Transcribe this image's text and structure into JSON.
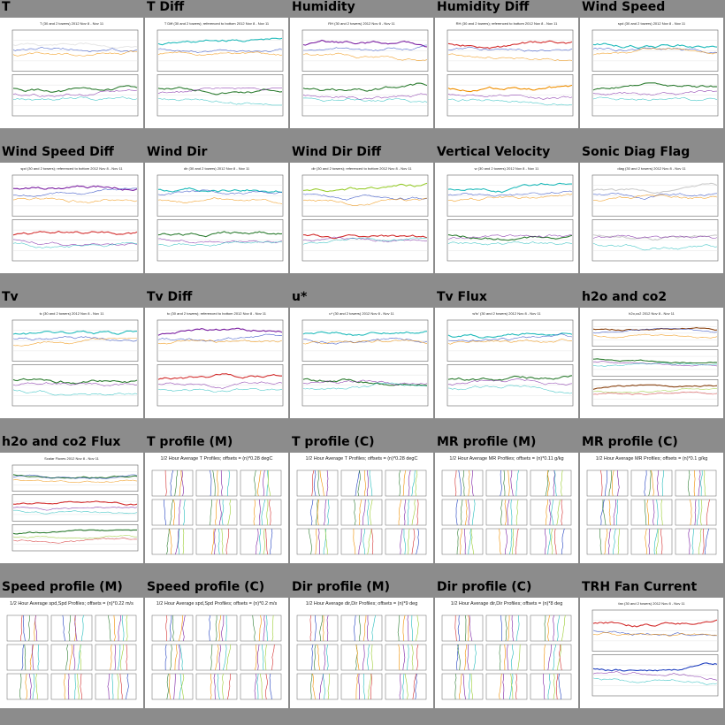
{
  "page": {
    "background": "#8c8c8c"
  },
  "thumbnails": [
    {
      "title": "T",
      "kind": "ts2",
      "caption": "T (30 and 2 towers) 2012 Nov 8 - Nov 11",
      "colors": [
        "#e8e8e8",
        "#2e7d32"
      ]
    },
    {
      "title": "T Diff",
      "kind": "ts2",
      "caption": "T Diff (30 and 2 towers); referenced to bottom 2012 Nov 8 - Nov 11",
      "colors": [
        "#22bbbb",
        "#2e7d32"
      ]
    },
    {
      "title": "Humidity",
      "kind": "ts2",
      "caption": "RH (30 and 2 towers) 2012 Nov 8 - Nov 11",
      "colors": [
        "#7b1fa2",
        "#2e7d32"
      ]
    },
    {
      "title": "Humidity Diff",
      "kind": "ts2",
      "caption": "RH (30 and 2 towers); referenced to bottom 2012 Nov 8 - Nov 11",
      "colors": [
        "#d32f2f",
        "#ef8f00"
      ]
    },
    {
      "title": "Wind Speed",
      "kind": "ts2",
      "caption": "spd (30 and 2 towers) 2012 Nov 8 - Nov 11",
      "colors": [
        "#22bbbb",
        "#2e7d32"
      ]
    },
    {
      "title": "Wind Speed Diff",
      "kind": "ts2",
      "caption": "spd (30 and 2 towers); referenced to bottom 2012 Nov 8 - Nov 11",
      "colors": [
        "#7b1fa2",
        "#d32f2f"
      ]
    },
    {
      "title": "Wind Dir",
      "kind": "ts2",
      "caption": "dir (30 and 2 towers) 2012 Nov 8 - Nov 11",
      "colors": [
        "#22bbbb",
        "#2e7d32"
      ]
    },
    {
      "title": "Wind Dir Diff",
      "kind": "ts2",
      "caption": "dir (30 and 2 towers); referenced to bottom 2012 Nov 8 - Nov 11",
      "colors": [
        "#9acd32",
        "#d32f2f"
      ]
    },
    {
      "title": "Vertical Velocity",
      "kind": "ts2",
      "caption": "w (30 and 2 towers) 2012 Nov 8 - Nov 11",
      "colors": [
        "#22bbbb",
        "#2e7d32"
      ]
    },
    {
      "title": "Sonic Diag Flag",
      "kind": "ts2",
      "caption": "diag (30 and 2 towers) 2012 Nov 8 - Nov 11",
      "colors": [
        "#cccccc",
        "#cccccc"
      ]
    },
    {
      "title": "Tv",
      "kind": "ts2",
      "caption": "tc (30 and 2 towers) 2012 Nov 8 - Nov 11",
      "colors": [
        "#22bbbb",
        "#2e7d32"
      ]
    },
    {
      "title": "Tv Diff",
      "kind": "ts2",
      "caption": "tc (30 and 2 towers); referenced to bottom 2012 Nov 8 - Nov 11",
      "colors": [
        "#7b1fa2",
        "#d32f2f"
      ]
    },
    {
      "title": "u*",
      "kind": "ts2",
      "caption": "u* (30 and 2 towers) 2012 Nov 8 - Nov 11",
      "colors": [
        "#22bbbb",
        "#2e7d32"
      ]
    },
    {
      "title": "Tv Flux",
      "kind": "ts2",
      "caption": "w'tc' (30 and 2 towers) 2012 Nov 8 - Nov 11",
      "colors": [
        "#22bbbb",
        "#2e7d32"
      ]
    },
    {
      "title": "h2o and co2",
      "kind": "ts3",
      "caption": "h2o,co2 2012 Nov 8 - Nov 11",
      "colors": [
        "#8b4513",
        "#2e7d32",
        "#8b4513"
      ]
    },
    {
      "title": "h2o and co2 Flux",
      "kind": "ts3",
      "caption": "Scalar Fluxes 2012 Nov 8 - Nov 11",
      "colors": [
        "#2e7d32",
        "#d32f2f",
        "#2e7d32"
      ]
    },
    {
      "title": "T profile (M)",
      "kind": "prof",
      "caption": "1/2 Hour Average T Profiles; offsets = (n)*0.28 degC"
    },
    {
      "title": "T profile (C)",
      "kind": "prof",
      "caption": "1/2 Hour Average T Profiles; offsets = (n)*0.28 degC"
    },
    {
      "title": "MR profile (M)",
      "kind": "prof",
      "caption": "1/2 Hour Average MR Profiles; offsets = (n)*0.11 g/kg"
    },
    {
      "title": "MR profile (C)",
      "kind": "prof",
      "caption": "1/2 Hour Average MR Profiles; offsets = (n)*0.1 g/kg"
    },
    {
      "title": "Speed profile (M)",
      "kind": "prof",
      "caption": "1/2 Hour Average spd,Spd Profiles; offsets = (n)*0.22 m/s"
    },
    {
      "title": "Speed profile (C)",
      "kind": "prof",
      "caption": "1/2 Hour Average spd,Spd Profiles; offsets = (n)*0.2 m/s"
    },
    {
      "title": "Dir profile (M)",
      "kind": "prof",
      "caption": "1/2 Hour Average dir,Dir Profiles; offsets = (n)*9 deg"
    },
    {
      "title": "Dir profile (C)",
      "kind": "prof",
      "caption": "1/2 Hour Average dir,Dir Profiles; offsets = (n)*8 deg"
    },
    {
      "title": "TRH Fan Current",
      "kind": "ts2",
      "caption": "fan (30 and 2 towers) 2012 Nov 8 - Nov 11",
      "colors": [
        "#d32f2f",
        "#1f3fbf"
      ]
    }
  ]
}
